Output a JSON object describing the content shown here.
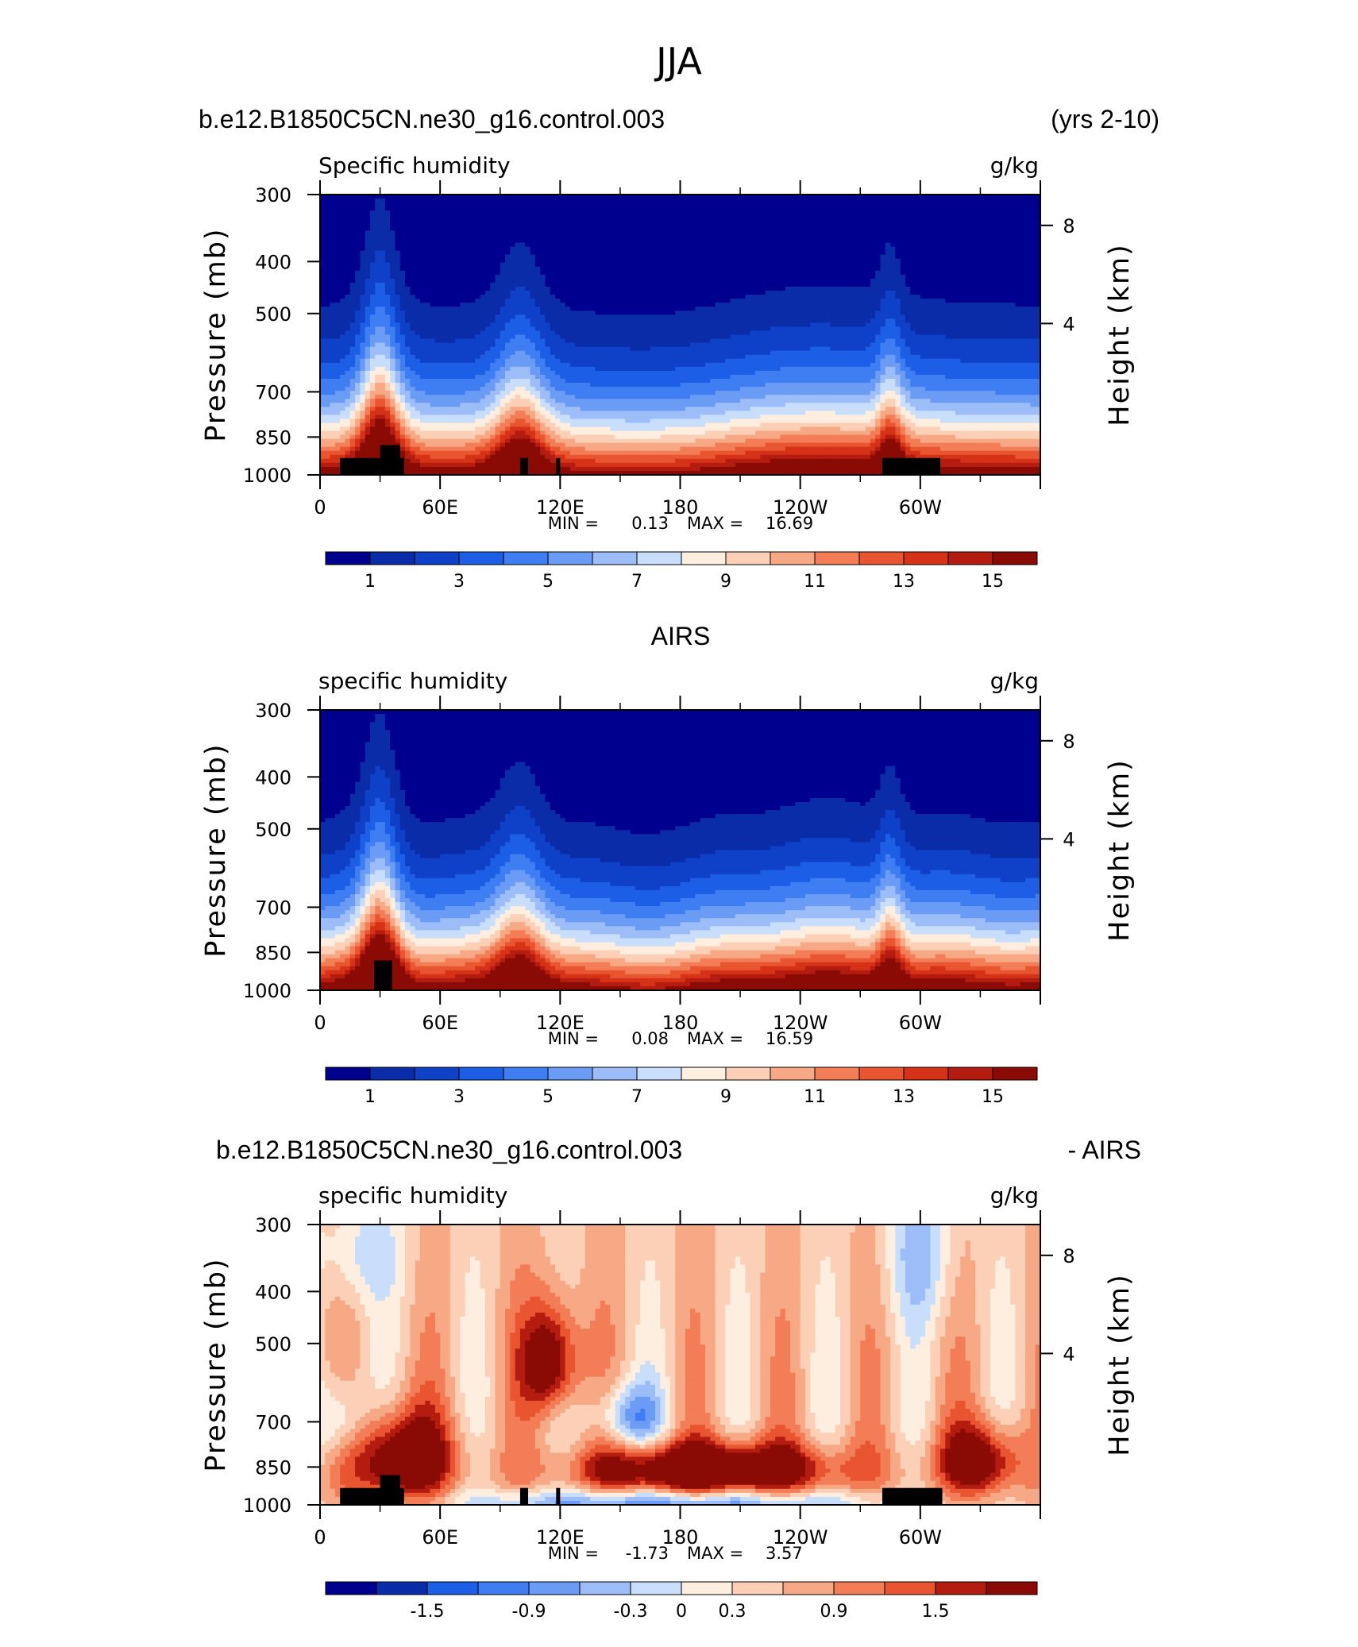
{
  "figure": {
    "title": "JJA",
    "yaxis_left_label": "Pressure (mb)",
    "yaxis_right_label": "Height (km)",
    "pressure_ticks": [
      "300",
      "400",
      "500",
      "700",
      "850",
      "1000"
    ],
    "height_ticks": [
      "8",
      "4"
    ],
    "lon_ticks": [
      "0",
      "60E",
      "120E",
      "180",
      "120W",
      "60W"
    ],
    "minor_lon_ticks": [
      "30E",
      "90E",
      "150E",
      "150W",
      "90W",
      "30W"
    ]
  },
  "chart_data": [
    {
      "type": "heatmap",
      "panel_header_left": "b.e12.B1850C5CN.ne30_g16.control.003",
      "panel_header_right": "(yrs 2-10)",
      "left_title": "Specific humidity",
      "right_title": "g/kg",
      "xlabel": "",
      "ylabel": "Pressure (mb)",
      "min_text": "MIN =",
      "min_value": "0.13",
      "max_text": "MAX =",
      "max_value": "16.69",
      "levels": [
        "1",
        "3",
        "5",
        "7",
        "9",
        "11",
        "13",
        "15"
      ],
      "colorbar_labels": [
        "1",
        "3",
        "5",
        "7",
        "9",
        "11",
        "13",
        "15"
      ],
      "x_range": [
        0,
        360
      ],
      "y_range": [
        1000,
        300
      ],
      "y_scale": "log"
    },
    {
      "type": "heatmap",
      "panel_header_center": "AIRS",
      "left_title": "specific humidity",
      "right_title": "g/kg",
      "xlabel": "",
      "ylabel": "Pressure (mb)",
      "min_text": "MIN =",
      "min_value": "0.08",
      "max_text": "MAX =",
      "max_value": "16.59",
      "colorbar_labels": [
        "1",
        "3",
        "5",
        "7",
        "9",
        "11",
        "13",
        "15"
      ],
      "x_range": [
        0,
        360
      ],
      "y_range": [
        1000,
        300
      ],
      "y_scale": "log"
    },
    {
      "type": "heatmap",
      "panel_header_left": "b.e12.B1850C5CN.ne30_g16.control.003",
      "panel_header_right": "- AIRS",
      "left_title": "specific humidity",
      "right_title": "g/kg",
      "xlabel": "",
      "ylabel": "Pressure (mb)",
      "min_text": "MIN =",
      "min_value": "-1.73",
      "max_text": "MAX =",
      "max_value": "3.57",
      "colorbar_labels": [
        "-1.5",
        "-0.9",
        "-0.3",
        "0",
        "0.3",
        "0.9",
        "1.5"
      ],
      "x_range": [
        0,
        360
      ],
      "y_range": [
        1000,
        300
      ],
      "y_scale": "log"
    }
  ],
  "colors": {
    "scale16": [
      "#00008f",
      "#0a2ca8",
      "#0f40c8",
      "#1c5ee6",
      "#3f7ef2",
      "#6a9cf5",
      "#9cbdf7",
      "#c8defa",
      "#fdeee0",
      "#fbd0b6",
      "#f7a884",
      "#f27d56",
      "#e85530",
      "#d63218",
      "#b51c10",
      "#8a0a05"
    ]
  }
}
